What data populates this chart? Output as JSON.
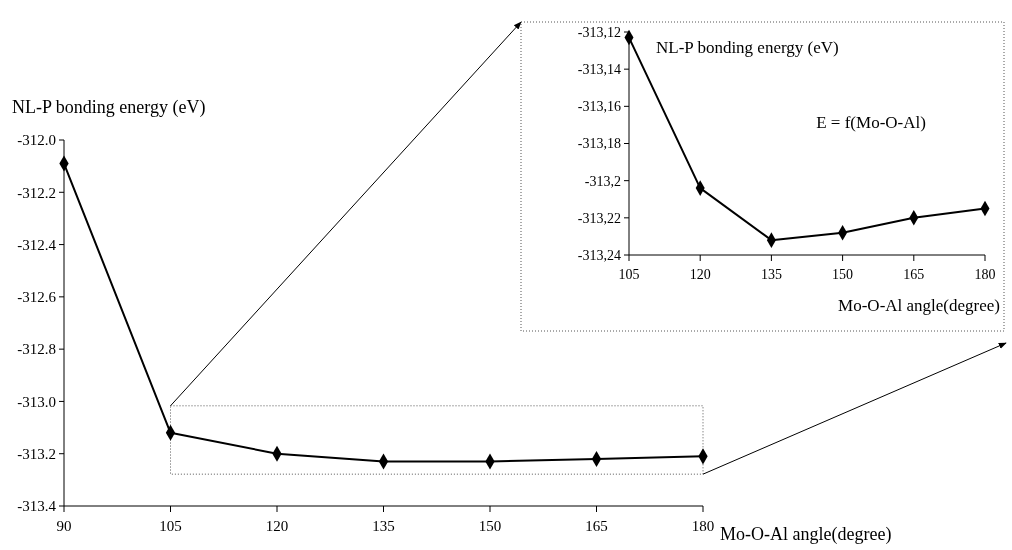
{
  "chart_data": [
    {
      "type": "line",
      "ylabel": "NL-P bonding energy (eV)",
      "xlabel": "Mo-O-Al angle(degree)",
      "x": [
        90,
        105,
        120,
        135,
        150,
        165,
        180
      ],
      "series": [
        {
          "color": "#000000",
          "values": [
            -312.09,
            -313.12,
            -313.2,
            -313.23,
            -313.23,
            -313.22,
            -313.21
          ]
        }
      ],
      "xlim": [
        90,
        180
      ],
      "xticks": [
        90,
        105,
        120,
        135,
        150,
        165,
        180
      ],
      "ylim": [
        -313.4,
        -312.0
      ],
      "yticks": [
        {
          "value": -313.4,
          "label": "-313.4"
        },
        {
          "value": -313.2,
          "label": "-313.2"
        },
        {
          "value": -313.0,
          "label": "-313.0"
        },
        {
          "value": -312.8,
          "label": "-312.8"
        },
        {
          "value": -312.6,
          "label": "-312.6"
        },
        {
          "value": -312.4,
          "label": "-312.4"
        },
        {
          "value": -312.2,
          "label": "-312.2"
        },
        {
          "value": -312.0,
          "label": "-312.0"
        }
      ],
      "grid": false,
      "marker": "diamond",
      "line_style": "solid"
    },
    {
      "type": "line",
      "ylabel": "NL-P bonding energy (eV)",
      "xlabel": "Mo-O-Al angle(degree)",
      "annotations": [
        "E = f(Mo-O-Al)"
      ],
      "x": [
        105,
        120,
        135,
        150,
        165,
        180
      ],
      "series": [
        {
          "color": "#000000",
          "values": [
            -313.123,
            -313.204,
            -313.232,
            -313.228,
            -313.22,
            -313.215
          ]
        }
      ],
      "xlim": [
        105,
        180
      ],
      "xticks": [
        105,
        120,
        135,
        150,
        165,
        180
      ],
      "ylim": [
        -313.24,
        -313.12
      ],
      "yticks": [
        {
          "value": -313.24,
          "label": "-313,24"
        },
        {
          "value": -313.22,
          "label": "-313,22"
        },
        {
          "value": -313.2,
          "label": "-313,2"
        },
        {
          "value": -313.18,
          "label": "-313,18"
        },
        {
          "value": -313.16,
          "label": "-313,16"
        },
        {
          "value": -313.14,
          "label": "-313,14"
        },
        {
          "value": -313.12,
          "label": "-313,12"
        }
      ],
      "grid": false,
      "marker": "diamond",
      "line_style": "solid"
    }
  ]
}
